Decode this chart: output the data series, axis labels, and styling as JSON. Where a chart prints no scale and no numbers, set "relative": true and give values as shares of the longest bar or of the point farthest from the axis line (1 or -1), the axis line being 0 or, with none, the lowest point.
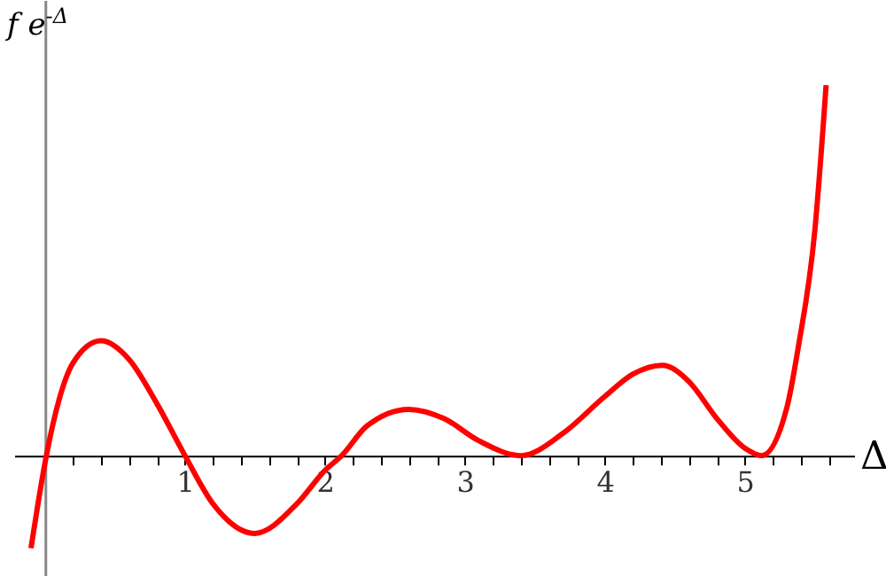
{
  "chart_data": {
    "type": "line",
    "relative": true,
    "xlabel": "Δ",
    "ylabel": "f e$^{-Δ}$",
    "x": [
      -0.1,
      -0.05,
      0.0,
      0.1,
      0.2,
      0.4,
      0.6,
      0.8,
      1.0,
      1.2,
      1.5,
      1.8,
      2.0,
      2.12,
      2.3,
      2.6,
      2.85,
      3.1,
      3.4,
      3.7,
      4.0,
      4.2,
      4.41,
      4.6,
      4.8,
      5.0,
      5.12,
      5.3,
      5.38,
      5.5,
      5.58
    ],
    "series": [
      {
        "color": "#ff0000",
        "values": [
          -0.25,
          -0.13,
          -0.02,
          0.15,
          0.25,
          0.31,
          0.26,
          0.14,
          0.0,
          -0.13,
          -0.21,
          -0.13,
          -0.04,
          0.0,
          0.08,
          0.125,
          0.1,
          0.04,
          0.0,
          0.06,
          0.16,
          0.22,
          0.244,
          0.2,
          0.1,
          0.02,
          0.0,
          0.13,
          0.29,
          0.61,
          1
        ]
      }
    ],
    "xlim": [
      -0.22,
      5.78
    ],
    "xticks": [
      {
        "value": 0.2,
        "label": null
      },
      {
        "value": 0.4,
        "label": null
      },
      {
        "value": 0.6,
        "label": null
      },
      {
        "value": 0.8,
        "label": null
      },
      1,
      {
        "value": 1.2,
        "label": null
      },
      {
        "value": 1.4,
        "label": null
      },
      {
        "value": 1.6,
        "label": null
      },
      {
        "value": 1.8,
        "label": null
      },
      2,
      {
        "value": 2.2,
        "label": null
      },
      {
        "value": 2.4,
        "label": null
      },
      {
        "value": 2.6,
        "label": null
      },
      {
        "value": 2.8,
        "label": null
      },
      3,
      {
        "value": 3.2,
        "label": null
      },
      {
        "value": 3.4,
        "label": null
      },
      {
        "value": 3.6,
        "label": null
      },
      {
        "value": 3.8,
        "label": null
      },
      4,
      {
        "value": 4.2,
        "label": null
      },
      {
        "value": 4.4,
        "label": null
      },
      {
        "value": 4.6,
        "label": null
      },
      {
        "value": 4.8,
        "label": null
      },
      5,
      {
        "value": 5.2,
        "label": null
      },
      {
        "value": 5.4,
        "label": null
      },
      {
        "value": 5.6,
        "label": null
      }
    ],
    "grid": false,
    "marker": "none",
    "line_style": "solid",
    "tick_labels": "x"
  }
}
